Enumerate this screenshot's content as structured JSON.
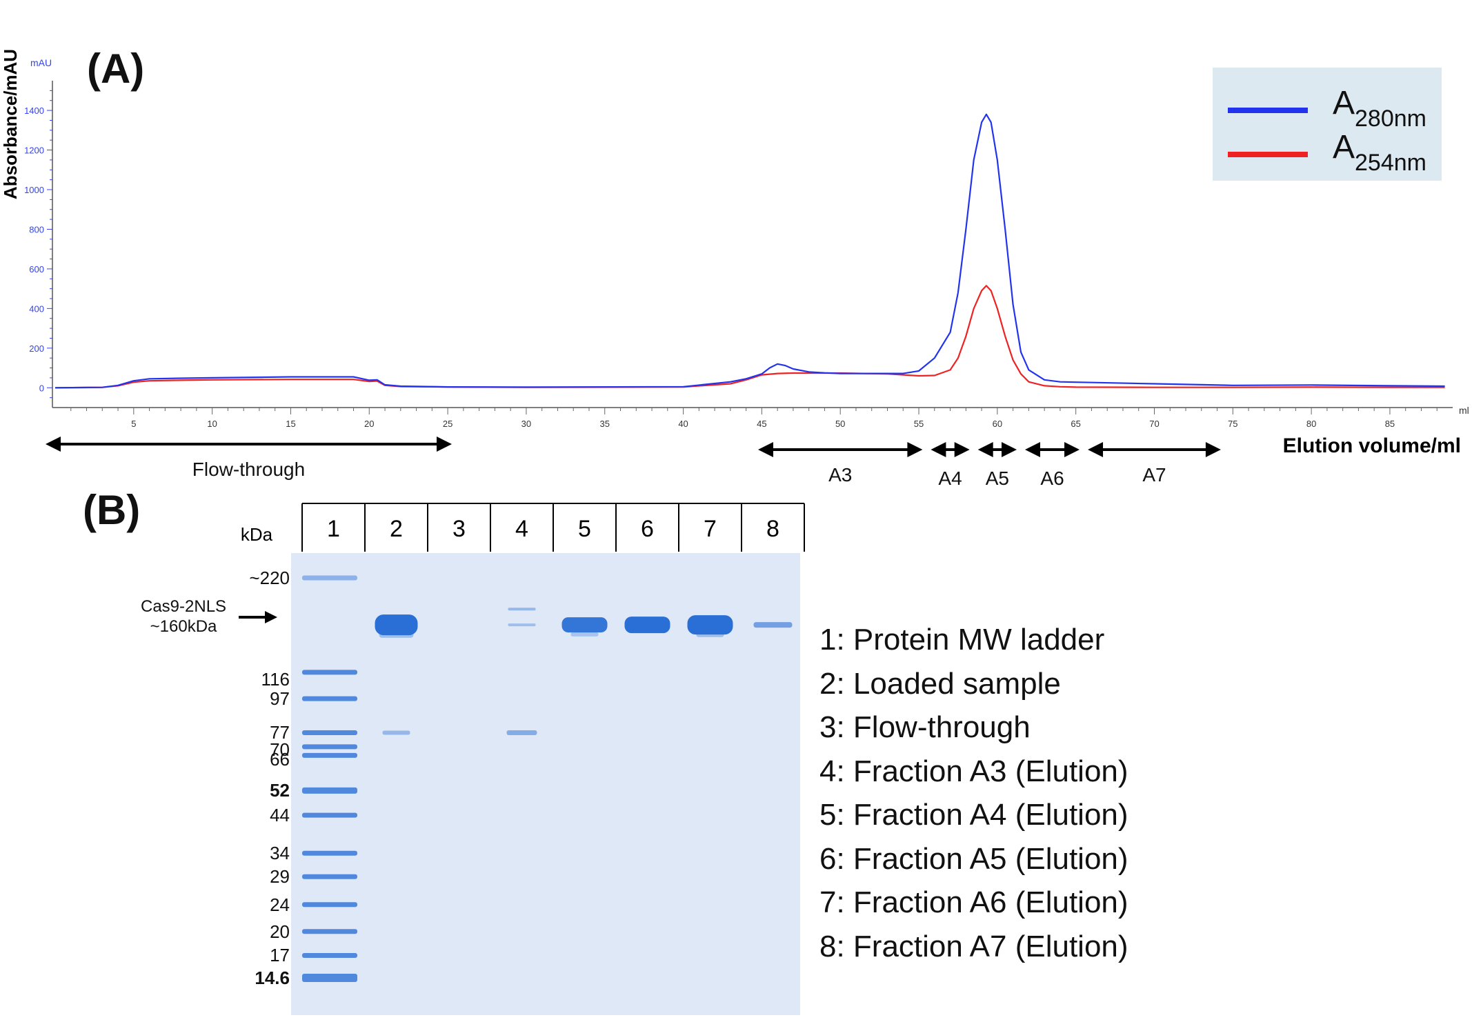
{
  "panel_a_label": "(A)",
  "panel_b_label": "(B)",
  "chart_data": {
    "type": "line",
    "ylabel": "Absorbance/mAU",
    "y_unit_label": "mAU",
    "xlabel": "Elution volume/ml",
    "x_unit_label": "ml",
    "xlim": [
      0,
      89
    ],
    "ylim": [
      -100,
      1550
    ],
    "x_ticks": [
      5,
      10,
      15,
      20,
      25,
      30,
      35,
      40,
      45,
      50,
      55,
      60,
      65,
      70,
      75,
      80,
      85
    ],
    "y_ticks": [
      0,
      200,
      400,
      600,
      800,
      1000,
      1200,
      1400
    ],
    "grid": false,
    "legend_position": "top-right",
    "series": [
      {
        "name": "A280nm",
        "color": "#2233ee",
        "x": [
          0,
          3,
          4,
          5,
          6,
          8,
          10,
          15,
          19,
          20,
          20.5,
          21,
          22,
          25,
          30,
          40,
          43,
          44,
          45,
          45.5,
          46,
          46.5,
          47,
          48,
          49,
          50,
          52,
          54,
          55,
          56,
          57,
          57.5,
          58,
          58.5,
          59,
          59.3,
          59.6,
          60,
          60.5,
          61,
          61.5,
          62,
          63,
          64,
          65,
          70,
          75,
          80,
          85,
          88.5
        ],
        "y": [
          0,
          2,
          12,
          35,
          45,
          48,
          50,
          55,
          55,
          38,
          40,
          15,
          8,
          4,
          3,
          5,
          30,
          45,
          70,
          100,
          120,
          112,
          95,
          80,
          75,
          72,
          72,
          72,
          85,
          150,
          280,
          480,
          800,
          1150,
          1340,
          1380,
          1340,
          1150,
          800,
          420,
          180,
          90,
          40,
          30,
          28,
          20,
          12,
          14,
          10,
          8
        ]
      },
      {
        "name": "A254nm",
        "color": "#ee2222",
        "x": [
          0,
          3,
          4,
          5,
          6,
          8,
          10,
          15,
          19,
          20,
          20.5,
          21,
          22,
          25,
          30,
          40,
          43,
          44,
          45,
          46,
          47,
          50,
          53,
          55,
          56,
          57,
          57.5,
          58,
          58.5,
          59,
          59.3,
          59.6,
          60,
          60.5,
          61,
          61.5,
          62,
          63,
          64,
          65,
          70,
          75,
          80,
          85,
          88.5
        ],
        "y": [
          0,
          2,
          10,
          28,
          35,
          38,
          40,
          42,
          42,
          32,
          34,
          12,
          6,
          4,
          2,
          4,
          20,
          40,
          65,
          72,
          74,
          74,
          70,
          60,
          62,
          90,
          150,
          260,
          400,
          490,
          515,
          490,
          400,
          260,
          140,
          70,
          30,
          10,
          5,
          3,
          2,
          2,
          3,
          2,
          2
        ]
      }
    ],
    "fraction_ranges": [
      {
        "label": "Flow-through",
        "start": 0,
        "end": 25
      },
      {
        "label": "A3",
        "start": 44.5,
        "end": 55.5
      },
      {
        "label": "A4",
        "start": 55.5,
        "end": 58.5
      },
      {
        "label": "A5",
        "start": 58.5,
        "end": 61.5
      },
      {
        "label": "A6",
        "start": 61.5,
        "end": 65.5
      },
      {
        "label": "A7",
        "start": 65.5,
        "end": 74.5
      }
    ]
  },
  "gel": {
    "lanes": [
      "1",
      "2",
      "3",
      "4",
      "5",
      "6",
      "7",
      "8"
    ],
    "kda_label": "kDa",
    "mw_markers": [
      {
        "label": "~220",
        "kda": 220,
        "bold": false
      },
      {
        "label": "116",
        "kda": 116,
        "bold": false
      },
      {
        "label": "97",
        "kda": 97,
        "bold": false
      },
      {
        "label": "77",
        "kda": 77,
        "bold": false
      },
      {
        "label": "70",
        "kda": 70,
        "bold": false
      },
      {
        "label": "66",
        "kda": 66,
        "bold": false
      },
      {
        "label": "52",
        "kda": 52,
        "bold": true
      },
      {
        "label": "44",
        "kda": 44,
        "bold": false
      },
      {
        "label": "34",
        "kda": 34,
        "bold": false
      },
      {
        "label": "29",
        "kda": 29,
        "bold": false
      },
      {
        "label": "24",
        "kda": 24,
        "bold": false
      },
      {
        "label": "20",
        "kda": 20,
        "bold": false
      },
      {
        "label": "17",
        "kda": 17,
        "bold": false
      },
      {
        "label": "14.6",
        "kda": 14.6,
        "bold": true
      }
    ],
    "target_label_line1": "Cas9-2NLS",
    "target_label_line2": "~160kDa",
    "legend": [
      "1: Protein MW ladder",
      "2: Loaded sample",
      "3: Flow-through",
      "4: Fraction A3 (Elution)",
      "5: Fraction A4 (Elution)",
      "6: Fraction A5 (Elution)",
      "7: Fraction A6 (Elution)",
      "8: Fraction A7 (Elution)"
    ],
    "band_color": "#2a6fd6"
  }
}
